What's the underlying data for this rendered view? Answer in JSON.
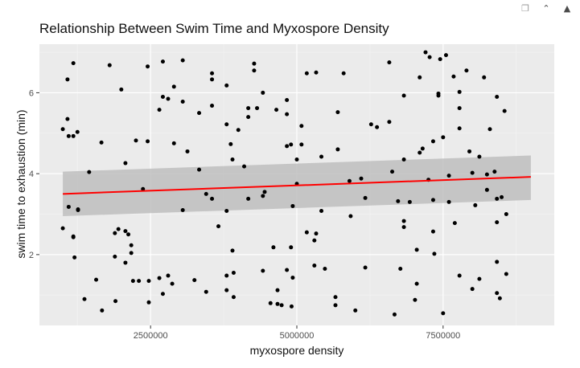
{
  "window_controls": [
    {
      "name": "popout-icon",
      "glyph": "❐"
    },
    {
      "name": "collapse-icon",
      "glyph": "⌃"
    },
    {
      "name": "expand-icon",
      "glyph": "▲"
    }
  ],
  "colors": {
    "panel": "#EBEBEB",
    "grid_major": "#FFFFFF",
    "grid_minor": "#F3F3F3",
    "point": "#000000",
    "fit_line": "#FF0000",
    "confidence_band": "#BEBEBE"
  },
  "chart_data": {
    "type": "scatter",
    "title": "Relationship Between Swim Time and Myxospore Density",
    "xlabel": "myxospore density",
    "ylabel": "swim time to exhaustion (min)",
    "xlim": [
      600000,
      9400000
    ],
    "ylim": [
      0.25,
      7.2
    ],
    "x_ticks": [
      2500000,
      5000000,
      7500000
    ],
    "x_tick_labels": [
      "2500000",
      "5000000",
      "7500000"
    ],
    "y_ticks": [
      2,
      4,
      6
    ],
    "y_tick_labels": [
      "2",
      "4",
      "6"
    ],
    "grid": true,
    "smooth": {
      "method": "lm",
      "x": [
        1000000,
        9000000
      ],
      "y": [
        3.5,
        3.92
      ],
      "se_lower": [
        2.95,
        3.35
      ],
      "se_upper": [
        4.05,
        4.45
      ]
    },
    "points": [
      [
        1000000,
        5.1
      ],
      [
        1000000,
        2.65
      ],
      [
        1080000,
        5.35
      ],
      [
        1080000,
        6.33
      ],
      [
        1100000,
        4.93
      ],
      [
        1100000,
        3.18
      ],
      [
        1180000,
        6.73
      ],
      [
        1180000,
        4.93
      ],
      [
        1180000,
        2.45
      ],
      [
        1180000,
        2.43
      ],
      [
        1200000,
        1.93
      ],
      [
        1250000,
        5.03
      ],
      [
        1260000,
        3.12
      ],
      [
        1260000,
        3.1
      ],
      [
        1370000,
        0.9
      ],
      [
        1450000,
        4.04
      ],
      [
        1570000,
        1.38
      ],
      [
        1660000,
        4.77
      ],
      [
        1670000,
        0.62
      ],
      [
        1800000,
        6.68
      ],
      [
        1890000,
        2.53
      ],
      [
        1890000,
        1.95
      ],
      [
        1900000,
        0.85
      ],
      [
        1950000,
        2.63
      ],
      [
        2000000,
        6.08
      ],
      [
        2070000,
        2.58
      ],
      [
        2070000,
        1.8
      ],
      [
        2070000,
        4.26
      ],
      [
        2120000,
        2.5
      ],
      [
        2170000,
        2.23
      ],
      [
        2170000,
        2.04
      ],
      [
        2200000,
        1.35
      ],
      [
        2250000,
        4.82
      ],
      [
        2300000,
        1.35
      ],
      [
        2370000,
        3.62
      ],
      [
        2450000,
        4.8
      ],
      [
        2450000,
        6.65
      ],
      [
        2470000,
        0.82
      ],
      [
        2470000,
        1.35
      ],
      [
        2650000,
        1.42
      ],
      [
        2650000,
        5.58
      ],
      [
        2710000,
        6.77
      ],
      [
        2710000,
        5.9
      ],
      [
        2710000,
        1.03
      ],
      [
        2800000,
        5.85
      ],
      [
        2800000,
        1.48
      ],
      [
        2870000,
        1.28
      ],
      [
        2900000,
        6.15
      ],
      [
        2900000,
        4.75
      ],
      [
        3050000,
        6.8
      ],
      [
        3050000,
        5.78
      ],
      [
        3050000,
        3.1
      ],
      [
        3130000,
        4.55
      ],
      [
        3250000,
        1.37
      ],
      [
        3330000,
        5.5
      ],
      [
        3330000,
        4.1
      ],
      [
        3450000,
        1.08
      ],
      [
        3450000,
        3.5
      ],
      [
        3550000,
        6.48
      ],
      [
        3550000,
        6.33
      ],
      [
        3550000,
        5.68
      ],
      [
        3550000,
        3.38
      ],
      [
        3660000,
        2.7
      ],
      [
        3800000,
        6.18
      ],
      [
        3800000,
        5.22
      ],
      [
        3800000,
        3.08
      ],
      [
        3800000,
        1.12
      ],
      [
        3800000,
        1.48
      ],
      [
        3870000,
        4.73
      ],
      [
        3900000,
        4.35
      ],
      [
        3900000,
        2.1
      ],
      [
        3920000,
        1.55
      ],
      [
        3920000,
        0.95
      ],
      [
        4000000,
        5.08
      ],
      [
        4100000,
        4.18
      ],
      [
        4170000,
        5.4
      ],
      [
        4170000,
        5.62
      ],
      [
        4170000,
        3.38
      ],
      [
        4270000,
        6.72
      ],
      [
        4270000,
        6.55
      ],
      [
        4320000,
        5.62
      ],
      [
        4420000,
        6.0
      ],
      [
        4420000,
        3.45
      ],
      [
        4420000,
        1.6
      ],
      [
        4450000,
        3.55
      ],
      [
        4550000,
        0.8
      ],
      [
        4600000,
        2.18
      ],
      [
        4650000,
        5.58
      ],
      [
        4670000,
        0.78
      ],
      [
        4670000,
        1.12
      ],
      [
        4740000,
        0.75
      ],
      [
        4830000,
        5.82
      ],
      [
        4830000,
        5.47
      ],
      [
        4830000,
        4.68
      ],
      [
        4830000,
        1.62
      ],
      [
        4900000,
        4.72
      ],
      [
        4900000,
        2.18
      ],
      [
        4910000,
        0.72
      ],
      [
        4930000,
        1.43
      ],
      [
        4930000,
        3.2
      ],
      [
        5000000,
        3.75
      ],
      [
        5000000,
        4.35
      ],
      [
        5080000,
        4.72
      ],
      [
        5080000,
        5.18
      ],
      [
        5170000,
        6.48
      ],
      [
        5170000,
        2.55
      ],
      [
        5300000,
        2.35
      ],
      [
        5300000,
        1.73
      ],
      [
        5330000,
        2.52
      ],
      [
        5330000,
        6.5
      ],
      [
        5420000,
        4.42
      ],
      [
        5420000,
        3.08
      ],
      [
        5480000,
        1.65
      ],
      [
        5660000,
        0.95
      ],
      [
        5660000,
        0.75
      ],
      [
        5700000,
        5.52
      ],
      [
        5700000,
        4.6
      ],
      [
        5800000,
        6.48
      ],
      [
        5900000,
        3.82
      ],
      [
        5920000,
        2.95
      ],
      [
        6000000,
        0.62
      ],
      [
        6100000,
        3.88
      ],
      [
        6170000,
        3.4
      ],
      [
        6170000,
        1.68
      ],
      [
        6270000,
        5.22
      ],
      [
        6370000,
        5.15
      ],
      [
        6580000,
        6.75
      ],
      [
        6580000,
        5.28
      ],
      [
        6630000,
        4.05
      ],
      [
        6670000,
        0.52
      ],
      [
        6730000,
        3.32
      ],
      [
        6770000,
        1.65
      ],
      [
        6830000,
        5.93
      ],
      [
        6830000,
        4.35
      ],
      [
        6830000,
        2.83
      ],
      [
        6830000,
        2.68
      ],
      [
        6930000,
        3.3
      ],
      [
        7020000,
        0.88
      ],
      [
        7050000,
        2.12
      ],
      [
        7050000,
        1.28
      ],
      [
        7100000,
        6.38
      ],
      [
        7100000,
        4.52
      ],
      [
        7150000,
        4.62
      ],
      [
        7200000,
        7.0
      ],
      [
        7250000,
        3.85
      ],
      [
        7270000,
        6.88
      ],
      [
        7330000,
        4.8
      ],
      [
        7330000,
        2.57
      ],
      [
        7330000,
        3.35
      ],
      [
        7350000,
        2.02
      ],
      [
        7420000,
        5.98
      ],
      [
        7420000,
        5.93
      ],
      [
        7450000,
        6.83
      ],
      [
        7500000,
        4.9
      ],
      [
        7500000,
        0.55
      ],
      [
        7550000,
        6.93
      ],
      [
        7600000,
        3.95
      ],
      [
        7600000,
        3.3
      ],
      [
        7680000,
        6.4
      ],
      [
        7700000,
        2.78
      ],
      [
        7780000,
        5.62
      ],
      [
        7780000,
        5.12
      ],
      [
        7780000,
        6.02
      ],
      [
        7780000,
        1.48
      ],
      [
        7900000,
        6.55
      ],
      [
        7950000,
        4.55
      ],
      [
        8000000,
        4.02
      ],
      [
        8000000,
        1.15
      ],
      [
        8050000,
        3.22
      ],
      [
        8120000,
        1.4
      ],
      [
        8120000,
        4.42
      ],
      [
        8200000,
        6.38
      ],
      [
        8250000,
        3.6
      ],
      [
        8250000,
        3.98
      ],
      [
        8300000,
        5.1
      ],
      [
        8380000,
        4.05
      ],
      [
        8420000,
        5.9
      ],
      [
        8420000,
        3.38
      ],
      [
        8420000,
        2.8
      ],
      [
        8420000,
        1.82
      ],
      [
        8420000,
        1.05
      ],
      [
        8470000,
        0.92
      ],
      [
        8500000,
        3.42
      ],
      [
        8550000,
        5.55
      ],
      [
        8580000,
        3.0
      ],
      [
        8580000,
        1.52
      ]
    ]
  }
}
